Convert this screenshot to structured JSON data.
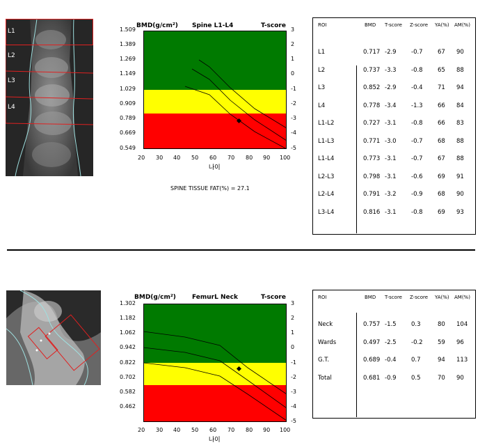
{
  "spine": {
    "roi_labels": [
      "L1",
      "L2",
      "L3",
      "L4"
    ],
    "chart": {
      "bmd_label": "BMD(g/cm²)",
      "title": "Spine L1-L4",
      "tscore_label": "T-score",
      "y_ticks": [
        "1.509",
        "1.389",
        "1.269",
        "1.149",
        "1.029",
        "0.909",
        "0.789",
        "0.669",
        "0.549"
      ],
      "t_ticks": [
        "3",
        "2",
        "1",
        "0",
        "-1",
        "-2",
        "-3",
        "-4",
        "-5"
      ],
      "x_ticks": [
        "20",
        "30",
        "40",
        "50",
        "60",
        "70",
        "80",
        "90",
        "100"
      ],
      "x_label": "나이",
      "colors": {
        "green": "#007a00",
        "yellow": "#ffff00",
        "red": "#ff0000"
      }
    },
    "tissue_fat": "SPINE TISSUE FAT(%) = 27.1",
    "table": {
      "headers": [
        "ROI",
        "BMD",
        "T-score",
        "Z-score",
        "YA(%)",
        "AM(%)"
      ],
      "rows": [
        [
          "L1",
          "0.717",
          "-2.9",
          "-0.7",
          "67",
          "90"
        ],
        [
          "L2",
          "0.737",
          "-3.3",
          "-0.8",
          "65",
          "88"
        ],
        [
          "L3",
          "0.852",
          "-2.9",
          "-0.4",
          "71",
          "94"
        ],
        [
          "L4",
          "0.778",
          "-3.4",
          "-1.3",
          "66",
          "84"
        ],
        [
          "L1-L2",
          "0.727",
          "-3.1",
          "-0.8",
          "66",
          "83"
        ],
        [
          "L1-L3",
          "0.771",
          "-3.0",
          "-0.7",
          "68",
          "88"
        ],
        [
          "L1-L4",
          "0.773",
          "-3.1",
          "-0.7",
          "67",
          "88"
        ],
        [
          "L2-L3",
          "0.798",
          "-3.1",
          "-0.6",
          "69",
          "91"
        ],
        [
          "L2-L4",
          "0.791",
          "-3.2",
          "-0.9",
          "68",
          "90"
        ],
        [
          "L3-L4",
          "0.816",
          "-3.1",
          "-0.8",
          "69",
          "93"
        ]
      ]
    }
  },
  "femur": {
    "chart": {
      "bmd_label": "BMD(g/cm²)",
      "title": "FemurL Neck",
      "tscore_label": "T-score",
      "y_ticks": [
        "1.302",
        "1.182",
        "1.062",
        "0.942",
        "0.822",
        "0.702",
        "0.582",
        "0.462"
      ],
      "t_ticks": [
        "3",
        "2",
        "1",
        "0",
        "-1",
        "-2",
        "-3",
        "-4",
        "-5"
      ],
      "x_ticks": [
        "20",
        "30",
        "40",
        "50",
        "60",
        "70",
        "80",
        "90",
        "100"
      ],
      "x_label": "나이",
      "colors": {
        "green": "#007a00",
        "yellow": "#ffff00",
        "red": "#ff0000"
      }
    },
    "table": {
      "headers": [
        "ROI",
        "BMD",
        "T-score",
        "Z-score",
        "YA(%)",
        "AM(%)"
      ],
      "rows": [
        [
          "Neck",
          "0.757",
          "-1.5",
          "0.3",
          "80",
          "104"
        ],
        [
          "Wards",
          "0.497",
          "-2.5",
          "-0.2",
          "59",
          "96"
        ],
        [
          "G.T.",
          "0.689",
          "-0.4",
          "0.7",
          "94",
          "113"
        ],
        [
          "Total",
          "0.681",
          "-0.9",
          "0.5",
          "70",
          "90"
        ]
      ]
    }
  }
}
